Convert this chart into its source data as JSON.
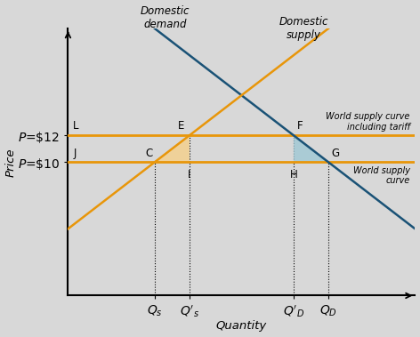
{
  "bg_color": "#d8d8d8",
  "axes_bg_color": "#d8d8d8",
  "demand_color": "#1a5276",
  "supply_color": "#e8960a",
  "world_supply_color": "#e8960a",
  "world_tariff_color": "#e8960a",
  "shading_orange": "#f5d08a",
  "shading_blue": "#9fc8d5",
  "P_world": 10,
  "P_tariff": 12,
  "Qs": 2.5,
  "Qs_prime": 3.5,
  "QD_prime": 6.5,
  "QD": 7.5,
  "x_min": 0,
  "x_max": 10,
  "y_min": 0,
  "y_max": 20,
  "xlabel": "Quantity",
  "ylabel": "Price",
  "demand_label": "Domestic\ndemand",
  "supply_label": "Domestic\nsupply",
  "world_label": "World supply\ncurve",
  "tariff_label": "World supply curve\nincluding tariff",
  "font_size": 8.5,
  "tick_font_size": 8
}
